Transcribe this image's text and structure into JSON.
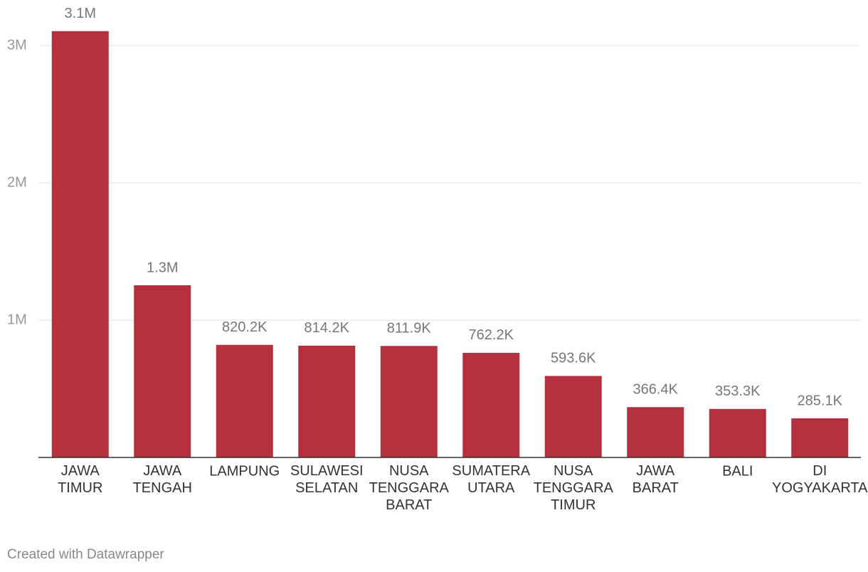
{
  "chart_data": {
    "type": "bar",
    "categories": [
      "JAWA TIMUR",
      "JAWA TENGAH",
      "LAMPUNG",
      "SULAWESI SELATAN",
      "NUSA TENGGARA BARAT",
      "SUMATERA UTARA",
      "NUSA TENGGARA TIMUR",
      "JAWA BARAT",
      "BALI",
      "DI YOGYAKARTA"
    ],
    "values": [
      3105000,
      1254000,
      820200,
      814200,
      811900,
      762200,
      593600,
      366400,
      353300,
      285100
    ],
    "value_labels": [
      "3.1M",
      "1.3M",
      "820.2K",
      "814.2K",
      "811.9K",
      "762.2K",
      "593.6K",
      "366.4K",
      "353.3K",
      "285.1K"
    ],
    "color": "#b5303f",
    "ylim": [
      0,
      3200000
    ],
    "yticks": [
      {
        "value": 1000000,
        "label": "1M"
      },
      {
        "value": 2000000,
        "label": "2M"
      },
      {
        "value": 3000000,
        "label": "3M"
      }
    ],
    "grid": true,
    "credit": "Created with Datawrapper"
  }
}
